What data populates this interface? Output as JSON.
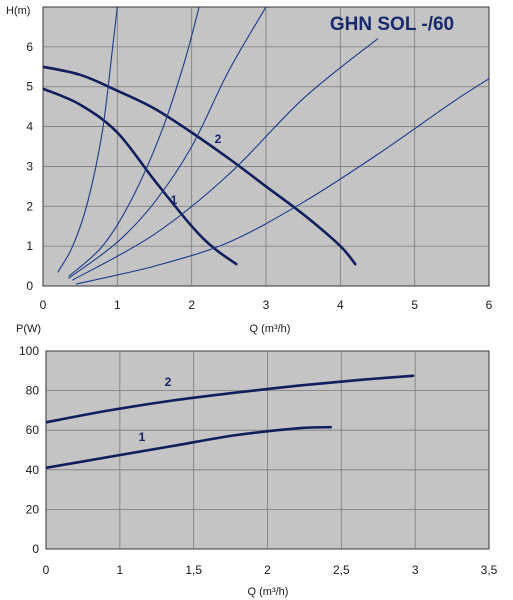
{
  "chart_data": [
    {
      "type": "line",
      "title": "GHN SOL -/60",
      "ylabel": "H(m)",
      "xlabel": "Q (m³/h)",
      "xlim": [
        0,
        6
      ],
      "ylim": [
        0,
        7
      ],
      "xticks": [
        "0",
        "1",
        "2",
        "3",
        "4",
        "5",
        "6"
      ],
      "yticks": [
        "0",
        "1",
        "2",
        "3",
        "4",
        "5",
        "6"
      ],
      "grid": true,
      "series": [
        {
          "name": "1",
          "kind": "pump",
          "points": [
            [
              0,
              4.95
            ],
            [
              0.5,
              4.55
            ],
            [
              1.0,
              3.85
            ],
            [
              1.5,
              2.65
            ],
            [
              2.0,
              1.5
            ],
            [
              2.3,
              0.95
            ],
            [
              2.6,
              0.55
            ]
          ]
        },
        {
          "name": "2",
          "kind": "pump",
          "points": [
            [
              0,
              5.5
            ],
            [
              0.5,
              5.3
            ],
            [
              1.0,
              4.9
            ],
            [
              1.5,
              4.45
            ],
            [
              2.0,
              3.85
            ],
            [
              2.5,
              3.2
            ],
            [
              3.0,
              2.5
            ],
            [
              3.5,
              1.8
            ],
            [
              4.0,
              1.0
            ],
            [
              4.2,
              0.55
            ]
          ]
        },
        {
          "kind": "system",
          "points": [
            [
              0.2,
              0.35
            ],
            [
              0.4,
              1.0
            ],
            [
              0.6,
              2.1
            ],
            [
              0.8,
              3.9
            ],
            [
              0.95,
              6.2
            ],
            [
              1.0,
              7.0
            ]
          ]
        },
        {
          "kind": "system",
          "points": [
            [
              0.35,
              0.25
            ],
            [
              0.8,
              1.0
            ],
            [
              1.2,
              2.2
            ],
            [
              1.6,
              3.9
            ],
            [
              1.9,
              5.6
            ],
            [
              2.1,
              7.0
            ]
          ]
        },
        {
          "kind": "system",
          "points": [
            [
              0.35,
              0.2
            ],
            [
              1.0,
              1.1
            ],
            [
              1.5,
              2.1
            ],
            [
              2.0,
              3.5
            ],
            [
              2.5,
              5.4
            ],
            [
              3.0,
              7.0
            ]
          ]
        },
        {
          "kind": "system",
          "points": [
            [
              0.4,
              0.15
            ],
            [
              1.5,
              1.3
            ],
            [
              2.5,
              2.8
            ],
            [
              3.5,
              4.7
            ],
            [
              4.5,
              6.2
            ]
          ]
        },
        {
          "kind": "system",
          "points": [
            [
              0.45,
              0.05
            ],
            [
              1.5,
              0.5
            ],
            [
              2.5,
              1.1
            ],
            [
              3.5,
              2.1
            ],
            [
              4.5,
              3.3
            ],
            [
              5.5,
              4.6
            ],
            [
              6.0,
              5.2
            ]
          ]
        }
      ]
    },
    {
      "type": "line",
      "ylabel": "P(W)",
      "xlabel": "Q (m³/h)",
      "xlim": [
        0,
        3.5
      ],
      "ylim": [
        0,
        100
      ],
      "xticks": [
        "0",
        "1",
        "1,5",
        "2",
        "2,5",
        "3",
        "3,5"
      ],
      "yticks": [
        "0",
        "20",
        "40",
        "60",
        "80",
        "100"
      ],
      "grid": true,
      "series": [
        {
          "name": "2",
          "points": [
            [
              0,
              64
            ],
            [
              0.5,
              70
            ],
            [
              1.0,
              75
            ],
            [
              1.5,
              79
            ],
            [
              2.0,
              82.5
            ],
            [
              2.5,
              85.5
            ],
            [
              2.9,
              87.5
            ]
          ]
        },
        {
          "name": "1",
          "points": [
            [
              0,
              41
            ],
            [
              0.5,
              46.5
            ],
            [
              1.0,
              52
            ],
            [
              1.5,
              57.5
            ],
            [
              2.0,
              61
            ],
            [
              2.25,
              61.5
            ]
          ]
        }
      ]
    }
  ]
}
